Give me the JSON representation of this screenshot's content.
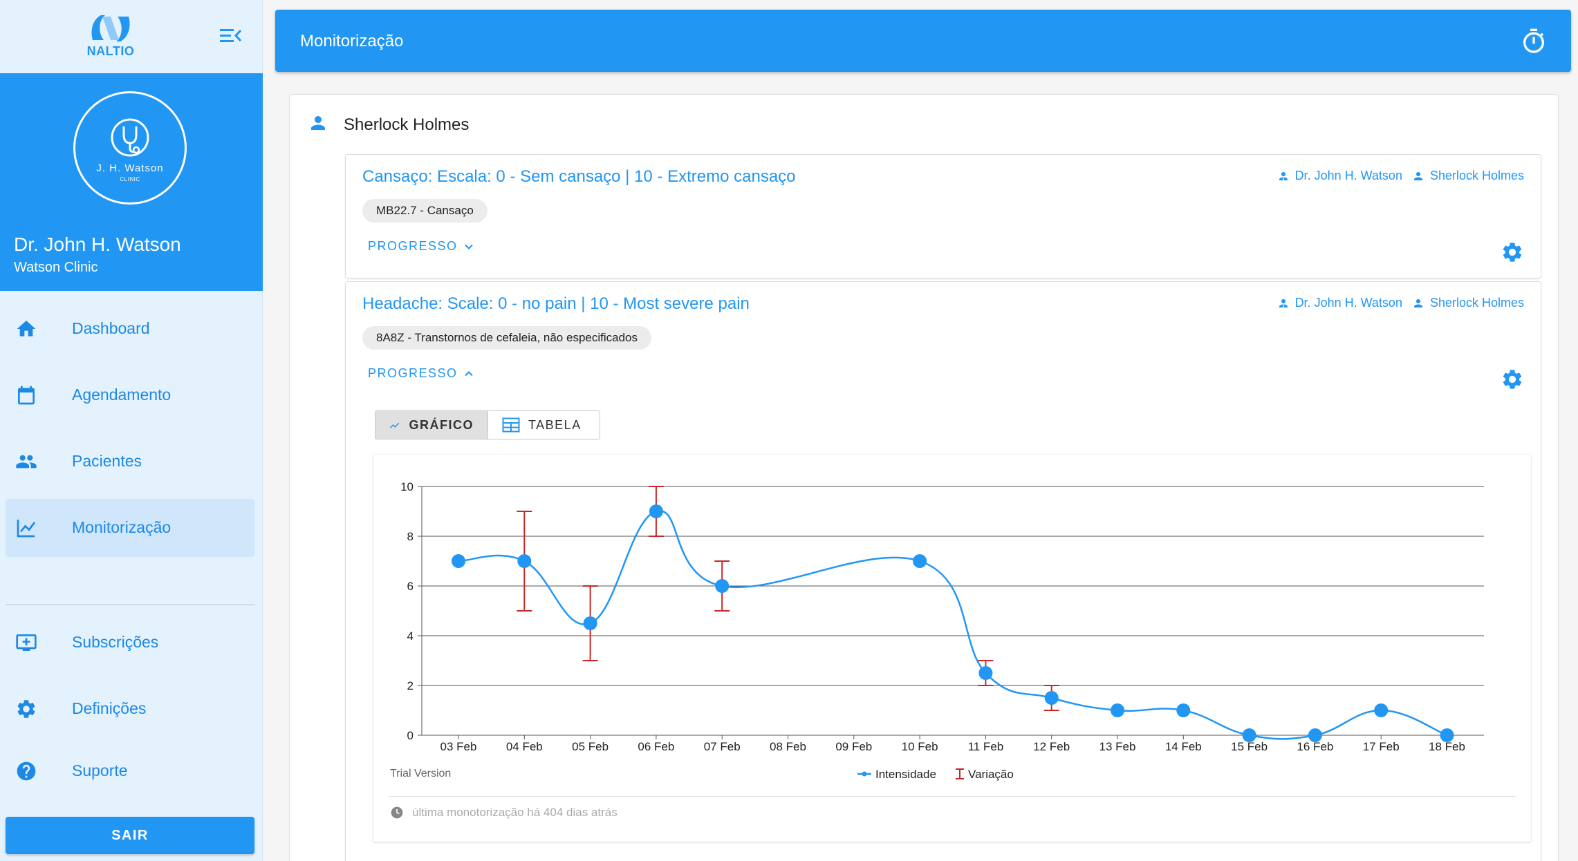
{
  "sidebar": {
    "logo_text": "NALTIO",
    "clinic_logo_name": "J. H. Watson",
    "clinic_logo_sub": "CLINIC",
    "doctor_name": "Dr. John H. Watson",
    "clinic": "Watson Clinic",
    "nav": [
      {
        "label": "Dashboard",
        "icon": "home-icon"
      },
      {
        "label": "Agendamento",
        "icon": "calendar-icon"
      },
      {
        "label": "Pacientes",
        "icon": "people-icon"
      },
      {
        "label": "Monitorização",
        "icon": "chart-line-icon"
      },
      {
        "label": "Subscrições",
        "icon": "subscription-icon"
      },
      {
        "label": "Definições",
        "icon": "gear-icon"
      },
      {
        "label": "Suporte",
        "icon": "help-icon"
      }
    ],
    "logout_label": "SAIR"
  },
  "topbar": {
    "title": "Monitorização"
  },
  "patient": {
    "name": "Sherlock Holmes"
  },
  "cards": [
    {
      "title": "Cansaço: Escala: 0 - Sem cansaço | 10 - Extremo cansaço",
      "doctor": "Dr. John H. Watson",
      "patient": "Sherlock Holmes",
      "chip": "MB22.7 - Cansaço",
      "progress_label": "PROGRESSO",
      "expanded": false
    },
    {
      "title": "Headache: Scale: 0 - no pain | 10 - Most severe pain",
      "doctor": "Dr. John H. Watson",
      "patient": "Sherlock Holmes",
      "chip": "8A8Z - Transtornos de cefaleia, não especificados",
      "progress_label": "PROGRESSO",
      "expanded": true
    }
  ],
  "view_toggle": {
    "chart_label": "GRÁFICO",
    "table_label": "TABELA",
    "selected": "chart"
  },
  "chart_data": {
    "type": "line",
    "categories": [
      "03 Feb",
      "04 Feb",
      "05 Feb",
      "06 Feb",
      "07 Feb",
      "08 Feb",
      "09 Feb",
      "10 Feb",
      "11 Feb",
      "12 Feb",
      "13 Feb",
      "14 Feb",
      "15 Feb",
      "16 Feb",
      "17 Feb",
      "18 Feb"
    ],
    "series": [
      {
        "name": "Intensidade",
        "values": [
          7,
          7,
          4.5,
          9,
          6,
          null,
          null,
          7,
          2.5,
          1.5,
          1,
          1,
          0,
          0,
          1,
          0
        ]
      }
    ],
    "error_bars": {
      "name": "Variação",
      "low": [
        null,
        5,
        3,
        8,
        5,
        null,
        null,
        null,
        2,
        1,
        null,
        null,
        null,
        null,
        null,
        null
      ],
      "high": [
        null,
        9,
        6,
        10,
        7,
        null,
        null,
        null,
        3,
        2,
        null,
        null,
        null,
        null,
        null,
        null
      ]
    },
    "ylim": [
      0,
      10
    ],
    "yticks": [
      0,
      2,
      4,
      6,
      8,
      10
    ],
    "grid": true,
    "legend_position": "bottom-center",
    "watermark": "Trial Version",
    "colors": {
      "line": "#2196f3",
      "error": "#c62828"
    }
  },
  "last_monitor": "última monotorização há 404 dias atrás"
}
